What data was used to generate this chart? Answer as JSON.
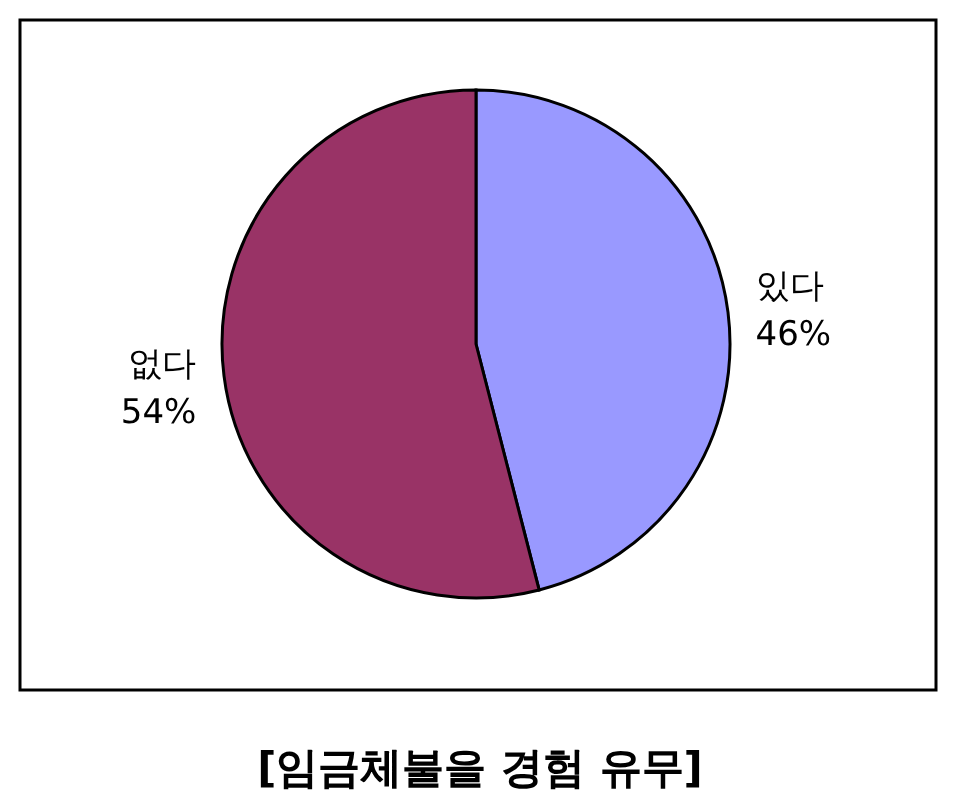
{
  "chart_data": {
    "type": "pie",
    "title": "[임금체불을 경험 유무]",
    "categories": [
      "있다",
      "없다"
    ],
    "values": [
      46,
      54
    ],
    "value_labels": [
      "46%",
      "54%"
    ],
    "colors": [
      "#9999ff",
      "#993366"
    ]
  }
}
